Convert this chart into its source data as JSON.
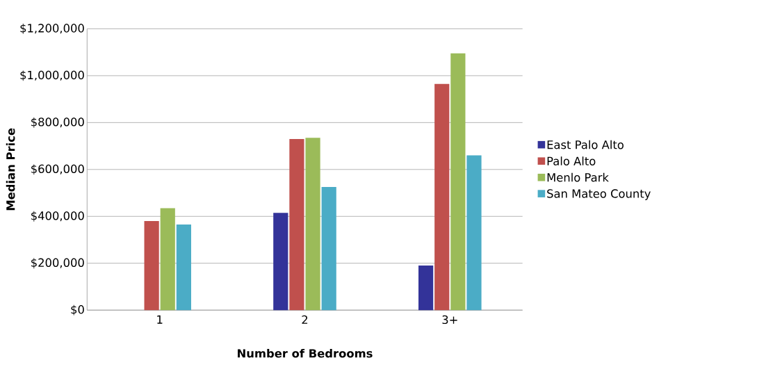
{
  "chart_data": {
    "type": "bar",
    "xlabel": "Number of Bedrooms",
    "ylabel": "Median Price",
    "categories": [
      "1",
      "2",
      "3+"
    ],
    "series": [
      {
        "name": "East Palo Alto",
        "color": "#333399",
        "values": [
          null,
          415000,
          190000
        ]
      },
      {
        "name": "Palo Alto",
        "color": "#c0504d",
        "values": [
          380000,
          730000,
          965000
        ]
      },
      {
        "name": "Menlo Park",
        "color": "#9bbb59",
        "values": [
          435000,
          735000,
          1095000
        ]
      },
      {
        "name": "San Mateo County",
        "color": "#4bacc6",
        "values": [
          365000,
          525000,
          660000
        ]
      }
    ],
    "ylim": [
      0,
      1200000
    ],
    "yticks": [
      {
        "value": 0,
        "label": "$0"
      },
      {
        "value": 200000,
        "label": "$200,000"
      },
      {
        "value": 400000,
        "label": "$400,000"
      },
      {
        "value": 600000,
        "label": "$600,000"
      },
      {
        "value": 800000,
        "label": "$800,000"
      },
      {
        "value": 1000000,
        "label": "$1,000,000"
      },
      {
        "value": 1200000,
        "label": "$1,200,000"
      }
    ],
    "grid": "y",
    "legend": "right"
  }
}
